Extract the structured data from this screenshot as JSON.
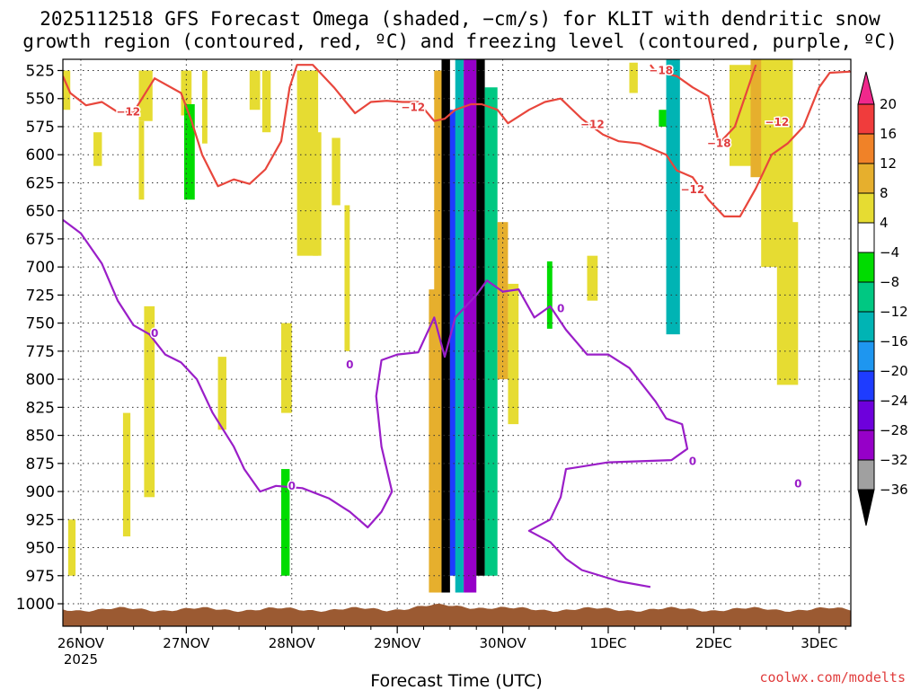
{
  "title": {
    "line1": "2025112518 GFS Forecast Omega (shaded, −cm/s) for KLIT with dendritic snow",
    "line2": "growth region (contoured, red, ºC) and freezing level (contoured, purple, ºC)"
  },
  "credit": "coolwx.com/modelts",
  "chart_data": {
    "type": "heatmap",
    "title": "2025112518 GFS Forecast Omega (shaded, −cm/s) for KLIT with dendritic snow growth region (contoured, red, ºC) and freezing level (contoured, purple, ºC)",
    "xlabel": "Forecast Time (UTC)",
    "ylabel": "",
    "x_range_days": [
      25.83,
      33.3
    ],
    "x_ticks": [
      {
        "day": 26,
        "label": "26NOV",
        "sublabel": "2025"
      },
      {
        "day": 27,
        "label": "27NOV",
        "sublabel": ""
      },
      {
        "day": 28,
        "label": "28NOV",
        "sublabel": ""
      },
      {
        "day": 29,
        "label": "29NOV",
        "sublabel": ""
      },
      {
        "day": 30,
        "label": "30NOV",
        "sublabel": ""
      },
      {
        "day": 31,
        "label": "1DEC",
        "sublabel": ""
      },
      {
        "day": 32,
        "label": "2DEC",
        "sublabel": ""
      },
      {
        "day": 33,
        "label": "3DEC",
        "sublabel": ""
      }
    ],
    "y_axis": "pressure (hPa), inverted",
    "y_range": [
      515,
      1020
    ],
    "y_ticks": [
      525,
      550,
      575,
      600,
      625,
      650,
      675,
      700,
      725,
      750,
      775,
      800,
      825,
      850,
      875,
      900,
      925,
      950,
      975,
      1000
    ],
    "grid": true,
    "colorbar": {
      "levels": [
        -36,
        -32,
        -28,
        -24,
        -20,
        -16,
        -12,
        -8,
        -4,
        4,
        8,
        12,
        16,
        20
      ],
      "tick_labels": [
        "20",
        "16",
        "12",
        "8",
        "4",
        "−4",
        "−8",
        "−12",
        "−16",
        "−20",
        "−24",
        "−28",
        "−32",
        "−36"
      ],
      "colors": {
        "above_20": "#f0288c",
        "16_20": "#f03c3c",
        "12_16": "#f08228",
        "8_12": "#e6af2d",
        "4_8": "#e6dc32",
        "neutral": "#ffffff",
        "m8_m4": "#00dc00",
        "m12_m8": "#00c882",
        "m16_m12": "#00b4b4",
        "m20_m16": "#1e96f0",
        "m24_m20": "#1e3cff",
        "m28_m24": "#6e00dc",
        "m32_m28": "#9600c8",
        "m36_m32": "#a0a0a0",
        "below_m36": "#000000"
      }
    },
    "shaded_regions": [
      {
        "t0": 25.83,
        "t1": 25.9,
        "p_top": 525,
        "p_bot": 560,
        "omega": 5
      },
      {
        "t0": 26.55,
        "t1": 26.68,
        "p_top": 525,
        "p_bot": 570,
        "omega": 5
      },
      {
        "t0": 26.55,
        "t1": 26.6,
        "p_top": 570,
        "p_bot": 640,
        "omega": 5
      },
      {
        "t0": 26.95,
        "t1": 27.05,
        "p_top": 525,
        "p_bot": 565,
        "omega": 5
      },
      {
        "t0": 26.98,
        "t1": 27.08,
        "p_top": 555,
        "p_bot": 640,
        "omega": -6
      },
      {
        "t0": 27.15,
        "t1": 27.2,
        "p_top": 525,
        "p_bot": 590,
        "omega": 5
      },
      {
        "t0": 27.6,
        "t1": 27.7,
        "p_top": 525,
        "p_bot": 560,
        "omega": 5
      },
      {
        "t0": 27.72,
        "t1": 27.8,
        "p_top": 525,
        "p_bot": 580,
        "omega": 5
      },
      {
        "t0": 28.05,
        "t1": 28.25,
        "p_top": 525,
        "p_bot": 690,
        "omega": 5
      },
      {
        "t0": 28.2,
        "t1": 28.28,
        "p_top": 580,
        "p_bot": 690,
        "omega": 5
      },
      {
        "t0": 28.38,
        "t1": 28.46,
        "p_top": 585,
        "p_bot": 645,
        "omega": 5
      },
      {
        "t0": 28.5,
        "t1": 28.55,
        "p_top": 645,
        "p_bot": 775,
        "omega": 5
      },
      {
        "t0": 26.12,
        "t1": 26.2,
        "p_top": 580,
        "p_bot": 610,
        "omega": 5
      },
      {
        "t0": 26.6,
        "t1": 26.7,
        "p_top": 735,
        "p_bot": 905,
        "omega": 5
      },
      {
        "t0": 27.3,
        "t1": 27.38,
        "p_top": 780,
        "p_bot": 845,
        "omega": 5
      },
      {
        "t0": 27.9,
        "t1": 28.0,
        "p_top": 750,
        "p_bot": 830,
        "omega": 5
      },
      {
        "t0": 25.88,
        "t1": 25.95,
        "p_top": 925,
        "p_bot": 975,
        "omega": 5
      },
      {
        "t0": 26.4,
        "t1": 26.47,
        "p_top": 830,
        "p_bot": 940,
        "omega": 5
      },
      {
        "t0": 27.9,
        "t1": 27.98,
        "p_top": 880,
        "p_bot": 975,
        "omega": -6
      },
      {
        "t0": 29.35,
        "t1": 29.45,
        "p_top": 525,
        "p_bot": 990,
        "omega": 9
      },
      {
        "t0": 29.42,
        "t1": 29.5,
        "p_top": 515,
        "p_bot": 990,
        "omega": -38
      },
      {
        "t0": 29.5,
        "t1": 29.6,
        "p_top": 560,
        "p_bot": 975,
        "omega": -21
      },
      {
        "t0": 29.55,
        "t1": 29.63,
        "p_top": 515,
        "p_bot": 990,
        "omega": -14
      },
      {
        "t0": 29.63,
        "t1": 29.75,
        "p_top": 515,
        "p_bot": 990,
        "omega": -30
      },
      {
        "t0": 29.75,
        "t1": 29.83,
        "p_top": 515,
        "p_bot": 975,
        "omega": -38
      },
      {
        "t0": 29.83,
        "t1": 29.95,
        "p_top": 540,
        "p_bot": 975,
        "omega": -9
      },
      {
        "t0": 29.95,
        "t1": 30.05,
        "p_top": 660,
        "p_bot": 800,
        "omega": 10
      },
      {
        "t0": 30.05,
        "t1": 30.15,
        "p_top": 715,
        "p_bot": 840,
        "omega": 5
      },
      {
        "t0": 29.3,
        "t1": 29.4,
        "p_top": 720,
        "p_bot": 990,
        "omega": 9
      },
      {
        "t0": 30.42,
        "t1": 30.47,
        "p_top": 695,
        "p_bot": 755,
        "omega": -6
      },
      {
        "t0": 30.8,
        "t1": 30.9,
        "p_top": 690,
        "p_bot": 730,
        "omega": 5
      },
      {
        "t0": 31.2,
        "t1": 31.28,
        "p_top": 518,
        "p_bot": 545,
        "omega": 5
      },
      {
        "t0": 31.48,
        "t1": 31.55,
        "p_top": 560,
        "p_bot": 575,
        "omega": -6
      },
      {
        "t0": 31.55,
        "t1": 31.68,
        "p_top": 515,
        "p_bot": 760,
        "omega": -13
      },
      {
        "t0": 32.15,
        "t1": 32.4,
        "p_top": 520,
        "p_bot": 610,
        "omega": 5
      },
      {
        "t0": 32.35,
        "t1": 32.55,
        "p_top": 515,
        "p_bot": 620,
        "omega": 10
      },
      {
        "t0": 32.45,
        "t1": 32.75,
        "p_top": 515,
        "p_bot": 700,
        "omega": 5
      },
      {
        "t0": 32.6,
        "t1": 32.8,
        "p_top": 660,
        "p_bot": 805,
        "omega": 5
      }
    ],
    "series": [
      {
        "name": "−12",
        "color": "#e8463c",
        "type": "line",
        "points": [
          [
            25.83,
            530
          ],
          [
            25.9,
            545
          ],
          [
            26.05,
            556
          ],
          [
            26.2,
            553
          ],
          [
            26.35,
            562
          ],
          [
            26.5,
            562
          ],
          [
            26.7,
            532
          ],
          [
            26.95,
            545
          ],
          [
            27.05,
            570
          ],
          [
            27.15,
            600
          ],
          [
            27.3,
            628
          ],
          [
            27.45,
            622
          ],
          [
            27.6,
            626
          ],
          [
            27.75,
            613
          ],
          [
            27.9,
            588
          ],
          [
            27.98,
            540
          ],
          [
            28.05,
            520
          ],
          [
            28.2,
            520
          ],
          [
            28.4,
            540
          ],
          [
            28.6,
            563
          ],
          [
            28.75,
            553
          ],
          [
            28.9,
            552
          ],
          [
            29.05,
            553
          ],
          [
            29.2,
            553
          ],
          [
            29.35,
            570
          ],
          [
            29.45,
            568
          ],
          [
            29.55,
            560
          ],
          [
            29.7,
            555
          ],
          [
            29.8,
            555
          ],
          [
            29.95,
            560
          ],
          [
            30.05,
            572
          ],
          [
            30.25,
            560
          ],
          [
            30.4,
            553
          ],
          [
            30.55,
            550
          ],
          [
            30.75,
            568
          ],
          [
            30.95,
            582
          ],
          [
            31.1,
            588
          ],
          [
            31.3,
            590
          ],
          [
            31.55,
            600
          ],
          [
            31.65,
            614
          ],
          [
            31.8,
            620
          ],
          [
            31.95,
            640
          ],
          [
            32.1,
            655
          ],
          [
            32.25,
            655
          ],
          [
            32.4,
            630
          ],
          [
            32.55,
            600
          ],
          [
            32.7,
            590
          ],
          [
            32.85,
            575
          ],
          [
            33.0,
            540
          ],
          [
            33.1,
            527
          ],
          [
            33.3,
            526
          ]
        ],
        "labels": [
          [
            26.45,
            562
          ],
          [
            29.15,
            558
          ],
          [
            30.85,
            573
          ],
          [
            31.8,
            631
          ],
          [
            32.6,
            571
          ]
        ]
      },
      {
        "name": "−18",
        "color": "#e8463c",
        "type": "line",
        "points": [
          [
            31.4,
            520
          ],
          [
            31.45,
            526
          ],
          [
            31.65,
            530
          ],
          [
            31.8,
            540
          ],
          [
            31.95,
            548
          ],
          [
            32.05,
            590
          ],
          [
            32.2,
            575
          ],
          [
            32.4,
            520
          ]
        ],
        "labels": [
          [
            31.5,
            525
          ],
          [
            32.05,
            590
          ]
        ]
      },
      {
        "name": "0",
        "color": "#9a1ec8",
        "type": "line",
        "points": [
          [
            25.83,
            658
          ],
          [
            26.0,
            670
          ],
          [
            26.2,
            697
          ],
          [
            26.35,
            730
          ],
          [
            26.5,
            752
          ],
          [
            26.65,
            760
          ],
          [
            26.8,
            778
          ],
          [
            26.95,
            785
          ],
          [
            27.1,
            800
          ],
          [
            27.25,
            830
          ],
          [
            27.45,
            860
          ],
          [
            27.55,
            880
          ],
          [
            27.7,
            900
          ],
          [
            27.85,
            895
          ],
          [
            28.1,
            897
          ],
          [
            28.35,
            906
          ],
          [
            28.55,
            918
          ],
          [
            28.72,
            932
          ],
          [
            28.85,
            918
          ],
          [
            28.95,
            900
          ],
          [
            28.85,
            860
          ],
          [
            28.8,
            815
          ],
          [
            28.85,
            783
          ],
          [
            29.0,
            778
          ],
          [
            29.2,
            776
          ],
          [
            29.35,
            745
          ],
          [
            29.45,
            780
          ],
          [
            29.55,
            745
          ],
          [
            29.65,
            735
          ],
          [
            29.75,
            725
          ],
          [
            29.85,
            712
          ],
          [
            30.0,
            722
          ],
          [
            30.15,
            720
          ],
          [
            30.3,
            745
          ],
          [
            30.45,
            735
          ],
          [
            30.6,
            756
          ],
          [
            30.8,
            778
          ],
          [
            31.0,
            778
          ],
          [
            31.2,
            790
          ],
          [
            31.45,
            820
          ],
          [
            31.55,
            835
          ],
          [
            31.7,
            840
          ],
          [
            31.75,
            862
          ],
          [
            31.6,
            872
          ],
          [
            31.0,
            874
          ],
          [
            30.6,
            880
          ],
          [
            30.55,
            905
          ],
          [
            30.45,
            925
          ],
          [
            30.25,
            935
          ],
          [
            30.45,
            945
          ],
          [
            30.6,
            960
          ],
          [
            30.75,
            970
          ],
          [
            31.1,
            980
          ],
          [
            31.4,
            985
          ]
        ],
        "labels": [
          [
            26.7,
            759
          ],
          [
            28.55,
            787
          ],
          [
            28.0,
            895
          ],
          [
            30.55,
            737
          ],
          [
            31.8,
            873
          ],
          [
            32.8,
            893
          ]
        ]
      }
    ],
    "terrain": {
      "color": "#9b5a32",
      "p_top_approx": 1005,
      "p_bottom": 1020
    }
  }
}
